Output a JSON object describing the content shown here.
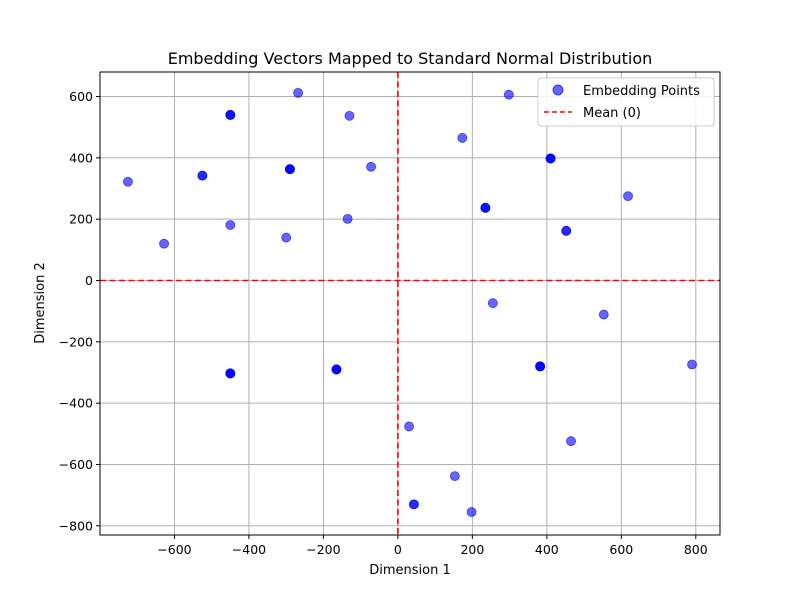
{
  "chart_data": {
    "type": "scatter",
    "title": "Embedding Vectors Mapped to Standard Normal Distribution",
    "xlabel": "Dimension 1",
    "ylabel": "Dimension 2",
    "xlim": [
      -800,
      865
    ],
    "ylim": [
      -830,
      680
    ],
    "xticks": [
      -600,
      -400,
      -200,
      0,
      200,
      400,
      600,
      800
    ],
    "yticks": [
      -800,
      -600,
      -400,
      -200,
      0,
      200,
      400,
      600
    ],
    "xtick_labels": [
      "−600",
      "−400",
      "−200",
      "0",
      "200",
      "400",
      "600",
      "800"
    ],
    "ytick_labels": [
      "−800",
      "−600",
      "−400",
      "−200",
      "0",
      "200",
      "400",
      "600"
    ],
    "grid": true,
    "legend_position": "top-right",
    "series": [
      {
        "name": "Embedding Points",
        "color": "#0000ff",
        "points": [
          [
            -268,
            612
          ],
          [
            -450,
            540
          ],
          [
            -450,
            540
          ],
          [
            -450,
            540
          ],
          [
            -130,
            537
          ],
          [
            298,
            606
          ],
          [
            173,
            465
          ],
          [
            -290,
            363
          ],
          [
            -290,
            363
          ],
          [
            -290,
            363
          ],
          [
            -290,
            363
          ],
          [
            -72,
            371
          ],
          [
            -525,
            342
          ],
          [
            -525,
            342
          ],
          [
            -725,
            322
          ],
          [
            410,
            398
          ],
          [
            410,
            398
          ],
          [
            410,
            398
          ],
          [
            410,
            398
          ],
          [
            618,
            275
          ],
          [
            235,
            237
          ],
          [
            235,
            237
          ],
          [
            235,
            237
          ],
          [
            -135,
            201
          ],
          [
            -450,
            181
          ],
          [
            452,
            162
          ],
          [
            452,
            162
          ],
          [
            -300,
            140
          ],
          [
            -628,
            120
          ],
          [
            255,
            -74
          ],
          [
            553,
            -111
          ],
          [
            -165,
            -290
          ],
          [
            -165,
            -290
          ],
          [
            -165,
            -290
          ],
          [
            -165,
            -290
          ],
          [
            -450,
            -303
          ],
          [
            -450,
            -303
          ],
          [
            -450,
            -303
          ],
          [
            -450,
            -303
          ],
          [
            382,
            -280
          ],
          [
            382,
            -280
          ],
          [
            382,
            -280
          ],
          [
            382,
            -280
          ],
          [
            790,
            -274
          ],
          [
            30,
            -476
          ],
          [
            465,
            -524
          ],
          [
            153,
            -638
          ],
          [
            43,
            -730
          ],
          [
            43,
            -730
          ],
          [
            198,
            -755
          ]
        ]
      }
    ],
    "reference_lines": [
      {
        "name": "Mean (0)",
        "orientation": "vertical",
        "value": 0,
        "color": "#ff0000",
        "style": "dashed"
      },
      {
        "orientation": "horizontal",
        "value": 0,
        "color": "#ff0000",
        "style": "dashed"
      }
    ],
    "legend": [
      {
        "label": "Embedding Points",
        "kind": "marker",
        "color": "#0000ff"
      },
      {
        "label": "Mean (0)",
        "kind": "dashed-line",
        "color": "#ff0000"
      }
    ]
  }
}
